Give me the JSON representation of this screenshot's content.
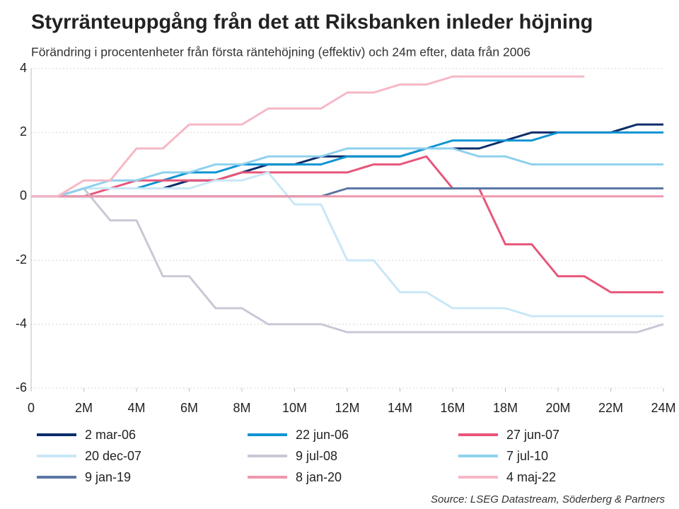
{
  "chart_data": {
    "type": "line",
    "title": "Styrränteuppgång från det att Riksbanken inleder höjning",
    "subtitle": "Förändring i procentenheter från första räntehöjning (effektiv) och 24m efter, data från 2006",
    "source": "Source: LSEG Datastream, Söderberg & Partners",
    "x": [
      0,
      1,
      2,
      3,
      4,
      5,
      6,
      7,
      8,
      9,
      10,
      11,
      12,
      13,
      14,
      15,
      16,
      17,
      18,
      19,
      20,
      21,
      22,
      23,
      24
    ],
    "xlim": [
      0,
      24
    ],
    "xticks": [
      {
        "value": 0,
        "label": "0"
      },
      {
        "value": 2,
        "label": "2M"
      },
      {
        "value": 4,
        "label": "4M"
      },
      {
        "value": 6,
        "label": "6M"
      },
      {
        "value": 8,
        "label": "8M"
      },
      {
        "value": 10,
        "label": "10M"
      },
      {
        "value": 12,
        "label": "12M"
      },
      {
        "value": 14,
        "label": "14M"
      },
      {
        "value": 16,
        "label": "16M"
      },
      {
        "value": 18,
        "label": "18M"
      },
      {
        "value": 20,
        "label": "20M"
      },
      {
        "value": 22,
        "label": "22M"
      },
      {
        "value": 24,
        "label": "24M"
      }
    ],
    "ylim": [
      -6,
      4
    ],
    "yticks": [
      4,
      2,
      0,
      -2,
      -4,
      -6
    ],
    "grid": true,
    "series": [
      {
        "name": "2 mar-06",
        "color": "#0c2d6b",
        "values": [
          0,
          0,
          0.25,
          0.25,
          0.25,
          0.25,
          0.5,
          0.5,
          0.75,
          1,
          1,
          1.25,
          1.25,
          1.25,
          1.25,
          1.5,
          1.5,
          1.5,
          1.75,
          2,
          2,
          2,
          2,
          2.25,
          2.25
        ]
      },
      {
        "name": "22 jun-06",
        "color": "#0f94d2",
        "values": [
          0,
          0,
          0.25,
          0.25,
          0.25,
          0.5,
          0.75,
          0.75,
          1,
          1,
          1,
          1,
          1.25,
          1.25,
          1.25,
          1.5,
          1.75,
          1.75,
          1.75,
          1.75,
          2,
          2,
          2,
          2,
          2
        ]
      },
      {
        "name": "27 jun-07",
        "color": "#e8567a",
        "values": [
          0,
          0,
          0,
          0.25,
          0.5,
          0.5,
          0.5,
          0.5,
          0.75,
          0.75,
          0.75,
          0.75,
          0.75,
          1,
          1,
          1.25,
          0.25,
          0.25,
          -1.5,
          -1.5,
          -2.5,
          -2.5,
          -3,
          -3,
          -3
        ]
      },
      {
        "name": "20 dec-07",
        "color": "#c9e7f6",
        "values": [
          0,
          0,
          0.25,
          0.25,
          0.25,
          0.25,
          0.25,
          0.5,
          0.5,
          0.75,
          -0.25,
          -0.25,
          -2,
          -2,
          -3,
          -3,
          -3.5,
          -3.5,
          -3.5,
          -3.75,
          -3.75,
          -3.75,
          -3.75,
          -3.75,
          -3.75
        ]
      },
      {
        "name": "9 jul-08",
        "color": "#c8c9d6",
        "values": [
          0,
          0,
          0.25,
          -0.75,
          -0.75,
          -2.5,
          -2.5,
          -3.5,
          -3.5,
          -4,
          -4,
          -4,
          -4.25,
          -4.25,
          -4.25,
          -4.25,
          -4.25,
          -4.25,
          -4.25,
          -4.25,
          -4.25,
          -4.25,
          -4.25,
          -4.25,
          -4
        ]
      },
      {
        "name": "7 jul-10",
        "color": "#8fd0ee",
        "values": [
          0,
          0,
          0.25,
          0.5,
          0.5,
          0.75,
          0.75,
          1,
          1,
          1.25,
          1.25,
          1.25,
          1.5,
          1.5,
          1.5,
          1.5,
          1.5,
          1.25,
          1.25,
          1,
          1,
          1,
          1,
          1,
          1
        ]
      },
      {
        "name": "9 jan-19",
        "color": "#5b76a3",
        "values": [
          0,
          0,
          0,
          0,
          0,
          0,
          0,
          0,
          0,
          0,
          0,
          0,
          0.25,
          0.25,
          0.25,
          0.25,
          0.25,
          0.25,
          0.25,
          0.25,
          0.25,
          0.25,
          0.25,
          0.25,
          0.25
        ]
      },
      {
        "name": "8 jan-20",
        "color": "#ef97ad",
        "values": [
          0,
          0,
          0,
          0,
          0,
          0,
          0,
          0,
          0,
          0,
          0,
          0,
          0,
          0,
          0,
          0,
          0,
          0,
          0,
          0,
          0,
          0,
          0,
          0,
          0
        ]
      },
      {
        "name": "4 maj-22",
        "color": "#f6b8c6",
        "values": [
          0,
          0,
          0.5,
          0.5,
          1.5,
          1.5,
          2.25,
          2.25,
          2.25,
          2.75,
          2.75,
          2.75,
          3.25,
          3.25,
          3.5,
          3.5,
          3.75,
          3.75,
          3.75,
          3.75,
          3.75,
          3.75,
          null,
          null,
          null
        ]
      }
    ]
  }
}
